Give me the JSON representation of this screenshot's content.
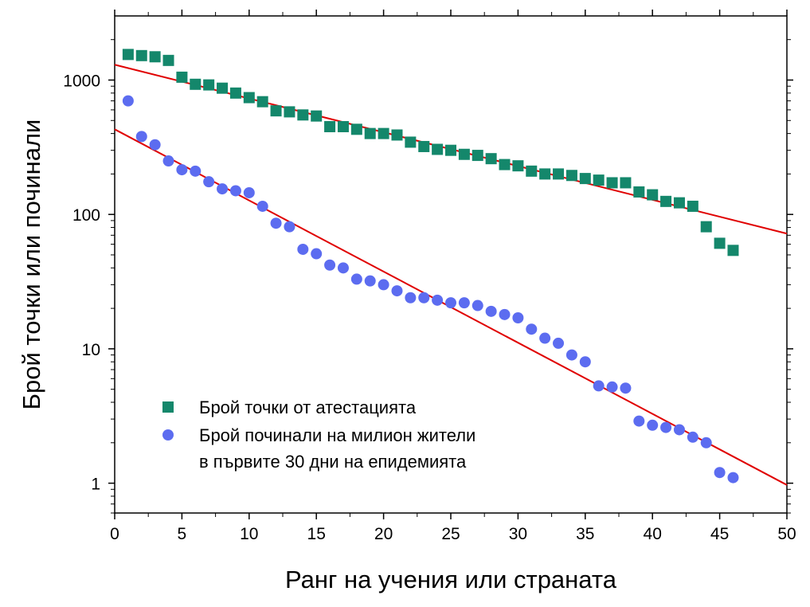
{
  "chart_data": {
    "type": "scatter",
    "title": "",
    "xlabel": "Ранг на учения или страната",
    "ylabel": "Брой точки или починали",
    "x_scale": "linear",
    "y_scale": "log",
    "xlim": [
      0,
      50
    ],
    "ylim": [
      0.6,
      3000
    ],
    "x_ticks": [
      "0",
      "5",
      "10",
      "15",
      "20",
      "25",
      "30",
      "35",
      "40",
      "45",
      "50"
    ],
    "y_ticks": [
      "1",
      "10",
      "100",
      "1000"
    ],
    "grid": false,
    "legend_position": "bottom-left",
    "series": [
      {
        "name": "Брой точки от атестацията",
        "marker": "square",
        "color": "#14876b",
        "x": [
          1,
          2,
          3,
          4,
          5,
          6,
          7,
          8,
          9,
          10,
          11,
          12,
          13,
          14,
          15,
          16,
          17,
          18,
          19,
          20,
          21,
          22,
          23,
          24,
          25,
          26,
          27,
          28,
          29,
          30,
          31,
          32,
          33,
          34,
          35,
          36,
          37,
          38,
          39,
          40,
          41,
          42,
          43,
          44,
          45,
          46
        ],
        "y": [
          1550,
          1520,
          1490,
          1400,
          1050,
          930,
          920,
          870,
          800,
          740,
          690,
          590,
          580,
          550,
          540,
          450,
          450,
          430,
          400,
          400,
          390,
          345,
          320,
          305,
          300,
          280,
          275,
          260,
          235,
          230,
          210,
          200,
          200,
          195,
          185,
          180,
          172,
          172,
          147,
          140,
          125,
          122,
          115,
          81,
          61,
          54
        ]
      },
      {
        "name": "Брой починали на милион жители в първите 30 дни на епидемията",
        "legend_lines": [
          "Брой починали на милион жители",
          "в първите 30 дни на епидемията"
        ],
        "marker": "circle",
        "color": "#5c6cf0",
        "x": [
          1,
          2,
          3,
          4,
          5,
          6,
          7,
          8,
          9,
          10,
          11,
          12,
          13,
          14,
          15,
          16,
          17,
          18,
          19,
          20,
          21,
          22,
          23,
          24,
          25,
          26,
          27,
          28,
          29,
          30,
          31,
          32,
          33,
          34,
          35,
          36,
          37,
          38,
          39,
          40,
          41,
          42,
          43,
          44,
          45,
          46
        ],
        "y": [
          700,
          380,
          330,
          250,
          215,
          210,
          175,
          155,
          150,
          145,
          115,
          86,
          81,
          55,
          51,
          42,
          40,
          33,
          32,
          30,
          27,
          24,
          24,
          23,
          22,
          22,
          21,
          19,
          18,
          17,
          14,
          12,
          11,
          9,
          8,
          5.3,
          5.2,
          5.1,
          2.9,
          2.7,
          2.6,
          2.5,
          2.2,
          2,
          1.2,
          1.1
        ]
      }
    ],
    "fit_lines": [
      {
        "name": "fit-points",
        "color": "#e00000",
        "x": [
          0,
          50
        ],
        "y": [
          1300,
          72
        ]
      },
      {
        "name": "fit-deaths",
        "color": "#e00000",
        "x": [
          0,
          50
        ],
        "y": [
          430,
          0.97
        ]
      }
    ]
  }
}
